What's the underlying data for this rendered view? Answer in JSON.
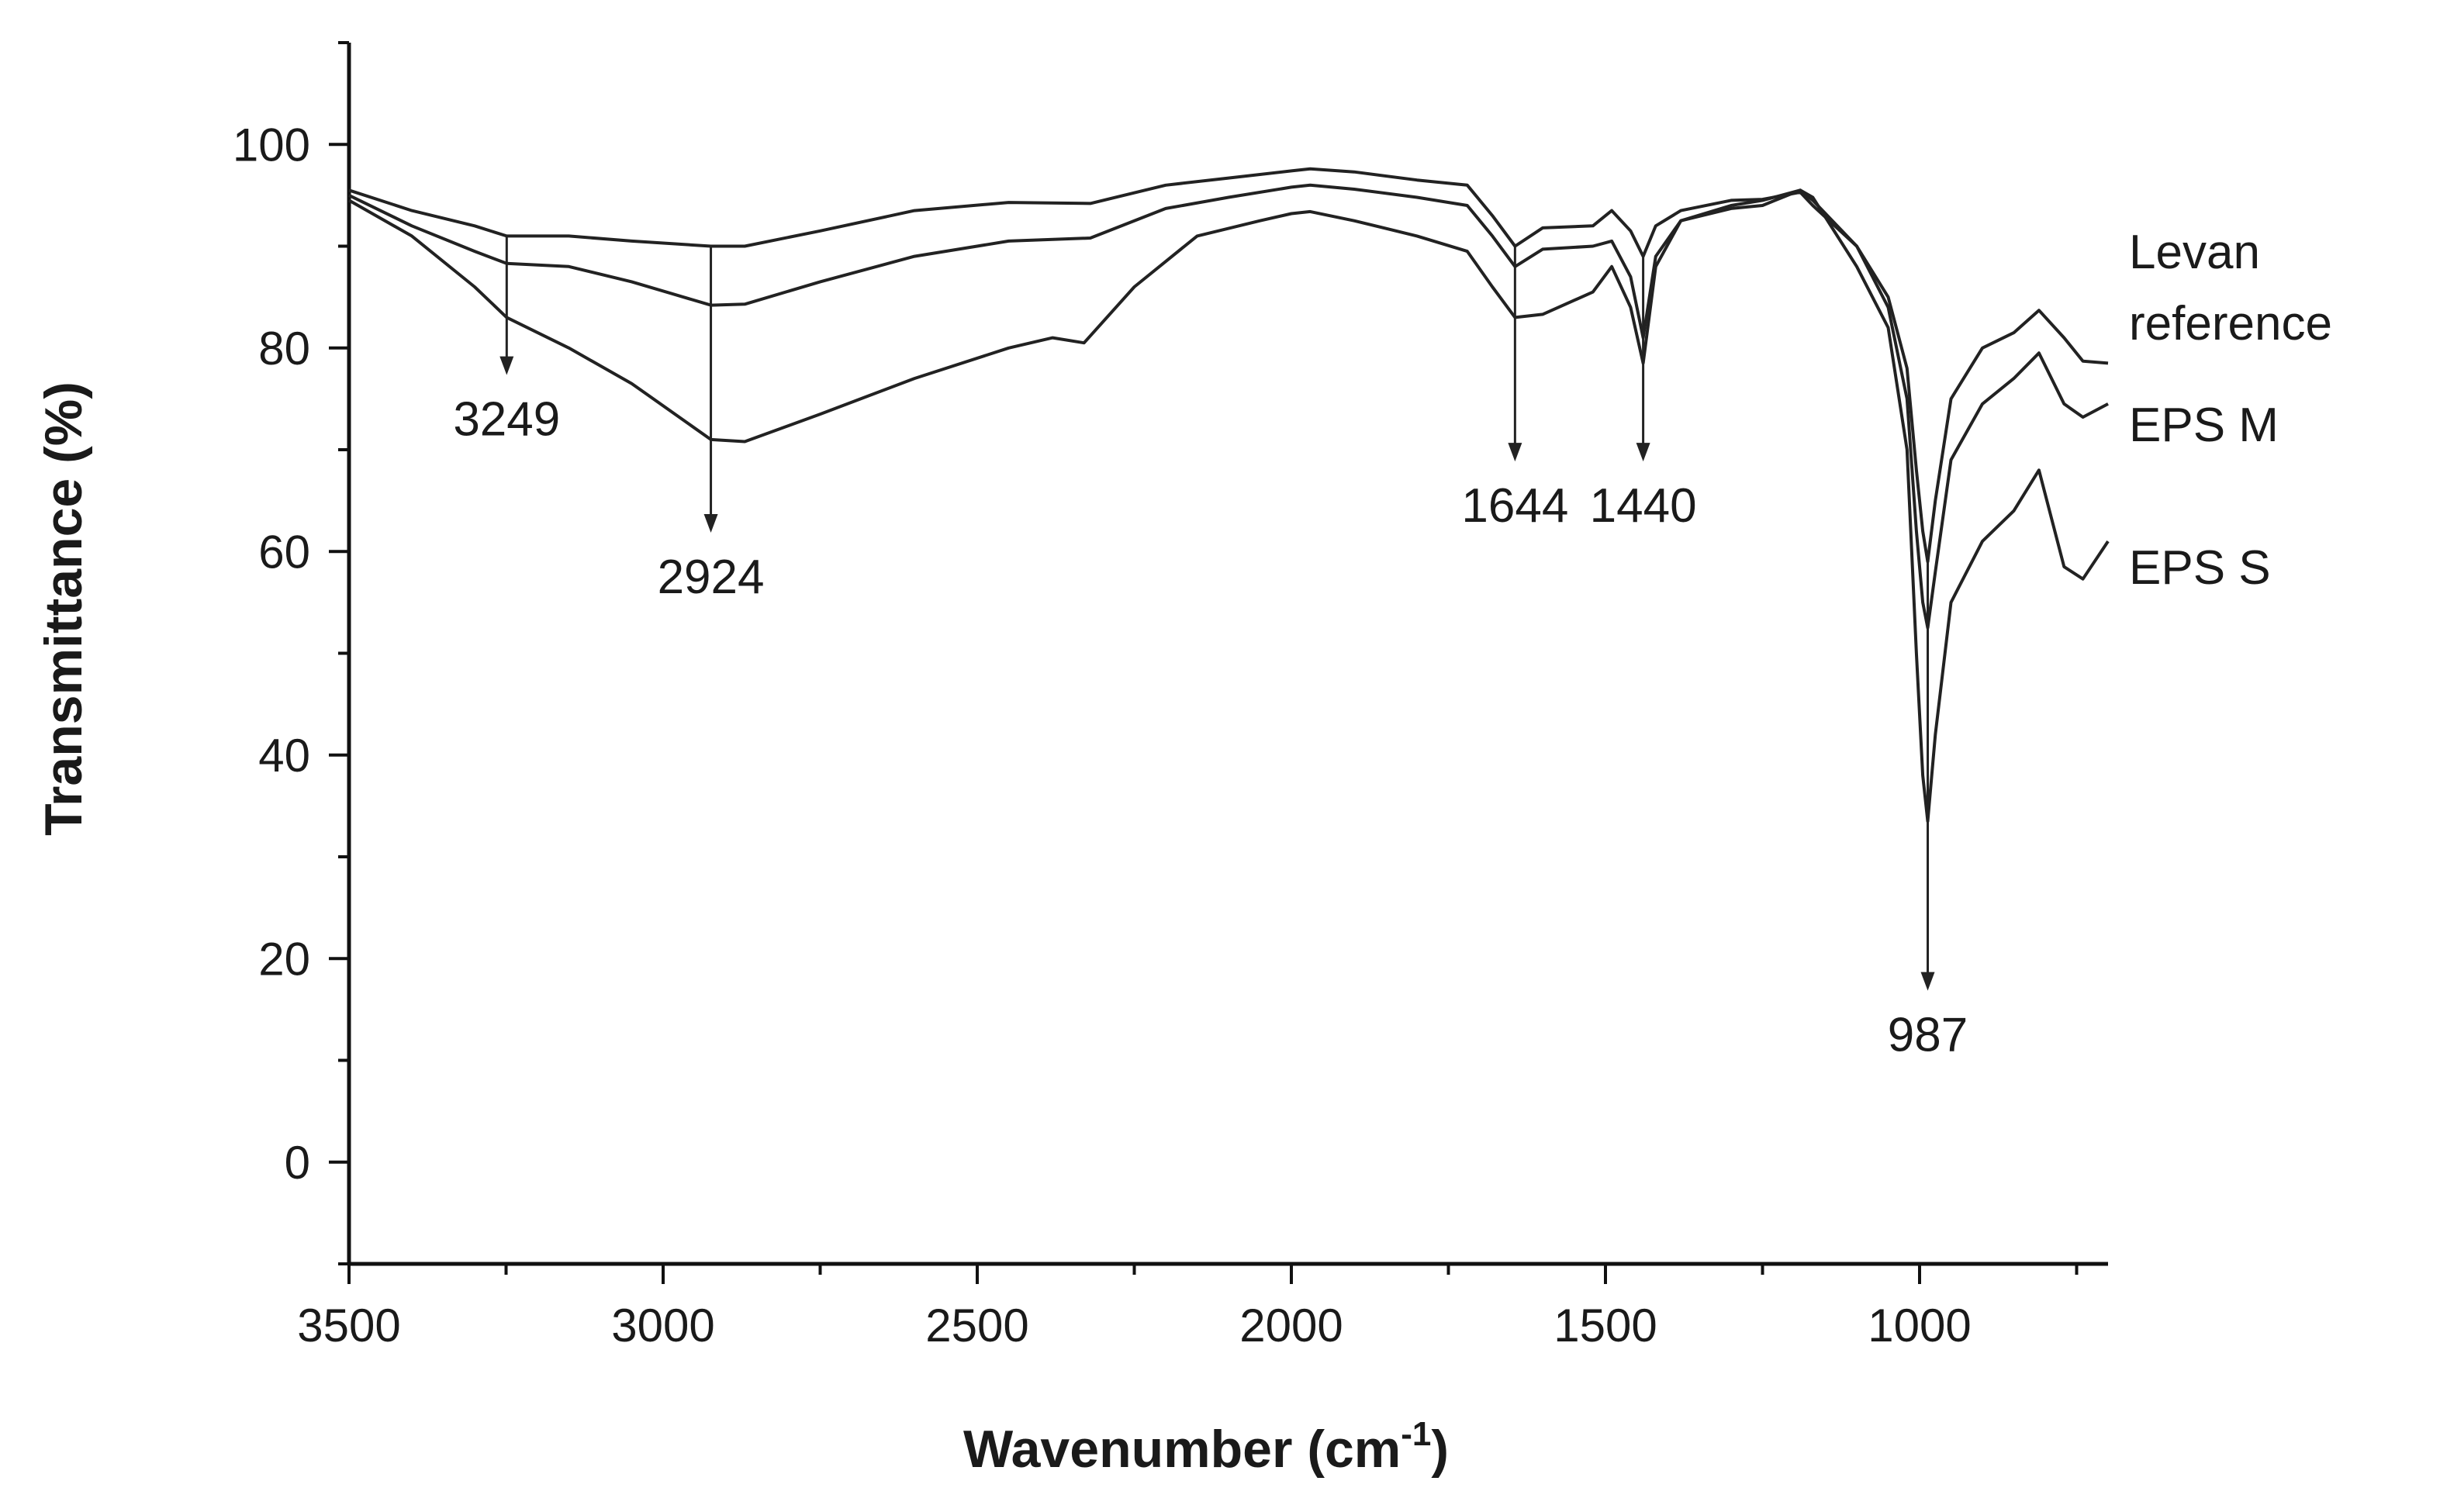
{
  "chart_data": {
    "type": "line",
    "xlabel": "Wavenumber (cm",
    "xlabel_sup": "-1",
    "xlabel_close": ")",
    "ylabel": "Transmittance (%)",
    "xlim": [
      3500,
      700
    ],
    "ylim": [
      -10,
      110
    ],
    "xticks": [
      3500,
      3000,
      2500,
      2000,
      1500,
      1000
    ],
    "yticks": [
      0,
      20,
      40,
      60,
      80,
      100
    ],
    "series": [
      {
        "name": "Levan reference",
        "label_lines": [
          "Levan",
          "reference"
        ],
        "x": [
          3500,
          3400,
          3300,
          3249,
          3150,
          3050,
          2924,
          2870,
          2750,
          2600,
          2450,
          2320,
          2200,
          2100,
          2000,
          1970,
          1900,
          1800,
          1720,
          1680,
          1644,
          1600,
          1520,
          1490,
          1460,
          1440,
          1420,
          1380,
          1300,
          1250,
          1190,
          1170,
          1100,
          1050,
          1020,
          1005,
          995,
          987,
          975,
          950,
          900,
          850,
          810,
          770,
          740,
          700
        ],
        "y": [
          95.5,
          93.5,
          92,
          91,
          91,
          90.5,
          90,
          90,
          91.5,
          93.5,
          94.3,
          94.2,
          96,
          96.7,
          97.4,
          97.6,
          97.3,
          96.5,
          96,
          93,
          90,
          91.8,
          92,
          93.5,
          91.5,
          89,
          92,
          93.5,
          94.5,
          94.6,
          95.3,
          94,
          90,
          85,
          78,
          68,
          62,
          59,
          65,
          75,
          80,
          81.5,
          83.7,
          81,
          78.7,
          78.5
        ]
      },
      {
        "name": "EPS M",
        "label_lines": [
          "EPS M"
        ],
        "x": [
          3500,
          3400,
          3300,
          3249,
          3150,
          3050,
          2924,
          2870,
          2750,
          2600,
          2450,
          2320,
          2200,
          2100,
          2000,
          1970,
          1900,
          1800,
          1720,
          1680,
          1644,
          1600,
          1520,
          1490,
          1460,
          1440,
          1420,
          1380,
          1300,
          1250,
          1190,
          1170,
          1100,
          1050,
          1020,
          1005,
          995,
          987,
          975,
          950,
          900,
          850,
          810,
          770,
          740,
          700
        ],
        "y": [
          95,
          92,
          89.5,
          88.3,
          88,
          86.5,
          84.2,
          84.3,
          86.5,
          89,
          90.5,
          90.8,
          93.7,
          94.8,
          95.8,
          96,
          95.6,
          94.8,
          94,
          91,
          88,
          89.7,
          90,
          90.5,
          87,
          81,
          89,
          92.5,
          94,
          94.5,
          95.5,
          94.5,
          90,
          84,
          75,
          62,
          55,
          52.5,
          58,
          69,
          74.5,
          77,
          79.5,
          74.5,
          73.2,
          74.5
        ]
      },
      {
        "name": "EPS S",
        "label_lines": [
          "EPS S"
        ],
        "x": [
          3500,
          3400,
          3300,
          3249,
          3150,
          3050,
          2924,
          2870,
          2750,
          2600,
          2450,
          2380,
          2330,
          2250,
          2150,
          2050,
          2000,
          1970,
          1900,
          1800,
          1720,
          1680,
          1644,
          1600,
          1520,
          1490,
          1460,
          1440,
          1420,
          1380,
          1300,
          1250,
          1190,
          1170,
          1100,
          1050,
          1020,
          1005,
          995,
          987,
          975,
          950,
          900,
          850,
          810,
          770,
          740,
          700
        ],
        "y": [
          94.5,
          91,
          86,
          83,
          80,
          76.5,
          71,
          70.8,
          73.5,
          77,
          80,
          81,
          80.5,
          86,
          91,
          92.5,
          93.2,
          93.4,
          92.5,
          91,
          89.5,
          86,
          83,
          83.3,
          85.5,
          88,
          84,
          78.5,
          88,
          92.5,
          93.7,
          94,
          95.5,
          94.8,
          88,
          82,
          70,
          50,
          38,
          33.5,
          42,
          55,
          61,
          64,
          68,
          58.5,
          57.3,
          61
        ]
      }
    ],
    "annotations": [
      {
        "label": "3249",
        "x": 3249,
        "y_from": 91,
        "y_to": 77.5
      },
      {
        "label": "2924",
        "x": 2924,
        "y_from": 90,
        "y_to": 62
      },
      {
        "label": "1644",
        "x": 1644,
        "y_from": 90,
        "y_to": 69
      },
      {
        "label": "1440",
        "x": 1440,
        "y_from": 89,
        "y_to": 69
      },
      {
        "label": "987",
        "x": 987,
        "y_from": 59,
        "y_to": 17
      }
    ],
    "grid": false,
    "legend": "right (labels at line ends)"
  }
}
